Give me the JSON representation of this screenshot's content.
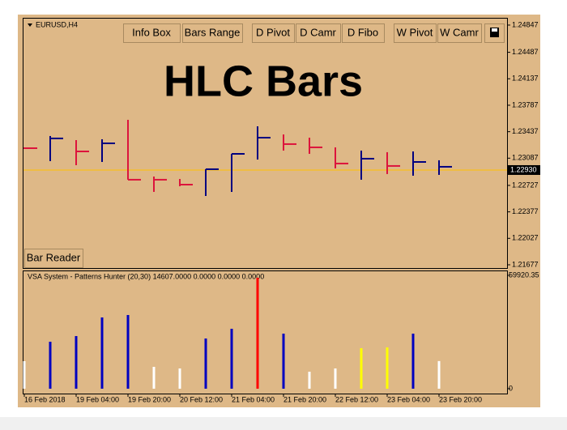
{
  "buttons": [
    "Info Box",
    "Bars Range",
    "D Pivot",
    "D Camr",
    "D Fibo",
    "W Pivot",
    "W Camr"
  ],
  "reader_button": "Bar Reader",
  "chart_data": [
    {
      "type": "hlc",
      "symbol": "EURUSD,H4",
      "title": "HLC Bars",
      "high": [
        1.2323,
        1.2338,
        1.23326,
        1.23337,
        1.23594,
        1.22844,
        1.22812,
        1.22941,
        1.23144,
        1.23508,
        1.23401,
        1.23358,
        1.2323,
        1.23187,
        1.23166,
        1.23176,
        1.23059
      ],
      "low": [
        1.23209,
        1.23048,
        1.22994,
        1.23037,
        1.22802,
        1.22641,
        1.22716,
        1.22587,
        1.22641,
        1.23069,
        1.23187,
        1.23144,
        1.22952,
        1.22802,
        1.22877,
        1.22855,
        1.22866
      ],
      "close": [
        1.23219,
        1.23348,
        1.23176,
        1.23283,
        1.22802,
        1.22802,
        1.22737,
        1.22941,
        1.23144,
        1.23358,
        1.23273,
        1.2323,
        1.23016,
        1.2308,
        1.22984,
        1.23037,
        1.22973
      ],
      "colors": [
        "#dc143c",
        "#000080",
        "#dc143c",
        "#000080",
        "#dc143c",
        "#dc143c",
        "#dc143c",
        "#000080",
        "#000080",
        "#000080",
        "#dc143c",
        "#dc143c",
        "#dc143c",
        "#000080",
        "#dc143c",
        "#000080",
        "#000080"
      ],
      "current_price": {
        "value": 1.2293,
        "label": "1.22930"
      },
      "current_price_color": "#ffc000",
      "ylim": [
        1.21634,
        1.24943
      ],
      "yticks": [
        1.24847,
        1.24487,
        1.24137,
        1.23787,
        1.23437,
        1.23087,
        1.22727,
        1.22377,
        1.22027,
        1.21677
      ]
    },
    {
      "type": "bar",
      "title": "VSA System - Patterns Hunter (20,30) 14607.0000 0.0000 0.0000 0.0000",
      "categories": [
        "16 Feb 2018",
        null,
        "19 Feb 04:00",
        null,
        "19 Feb 20:00",
        null,
        "20 Feb 12:00",
        null,
        "21 Feb 04:00",
        null,
        "21 Feb 20:00",
        null,
        "22 Feb 12:00",
        null,
        "23 Feb 04:00",
        null,
        "23 Feb 20:00"
      ],
      "values": [
        14550,
        24825,
        27820,
        37660,
        38950,
        11560,
        10700,
        26540,
        31670,
        58640,
        29100,
        8990,
        10700,
        21400,
        21830,
        29100,
        14607
      ],
      "colors": [
        "#ffffff",
        "#0000c0",
        "#0000c0",
        "#0000c0",
        "#0000c0",
        "#ffffff",
        "#ffffff",
        "#0000c0",
        "#0000c0",
        "#ff0000",
        "#0000c0",
        "#ffffff",
        "#ffffff",
        "#ffff00",
        "#ffff00",
        "#0000c0",
        "#ffffff"
      ],
      "ylim": [
        0,
        59920.35
      ],
      "yticks": [
        59920.35,
        0
      ]
    }
  ]
}
